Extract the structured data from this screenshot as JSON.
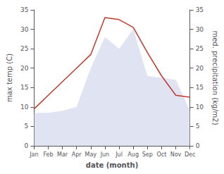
{
  "chart_data": {
    "type": "line",
    "xlabel": "date (month)",
    "ylabel": "max temp (C)",
    "y2label": "med. precipitation (kg/m2)",
    "categories": [
      "Jan",
      "Feb",
      "Mar",
      "Apr",
      "May",
      "Jun",
      "Jul",
      "Aug",
      "Sep",
      "Oct",
      "Nov",
      "Dec"
    ],
    "series": [
      {
        "type": "line",
        "color": "#c0392b",
        "axis": "y",
        "values": [
          9.5,
          13.0,
          16.5,
          20.0,
          23.5,
          33.0,
          32.5,
          30.5,
          24.0,
          18.0,
          13.0,
          12.5
        ]
      },
      {
        "type": "area",
        "color": "#c5cce8",
        "axis": "y2",
        "values": [
          8.5,
          8.5,
          9.0,
          10.0,
          20.0,
          28.0,
          25.0,
          30.0,
          18.0,
          17.5,
          17.0,
          9.0
        ]
      }
    ],
    "ylim": [
      0,
      35
    ],
    "yticks": [
      0,
      5,
      10,
      15,
      20,
      25,
      30,
      35
    ],
    "y2lim": [
      0,
      35
    ],
    "y2ticks": [
      0,
      5,
      10,
      15,
      20,
      25,
      30,
      35
    ],
    "grid": false
  }
}
